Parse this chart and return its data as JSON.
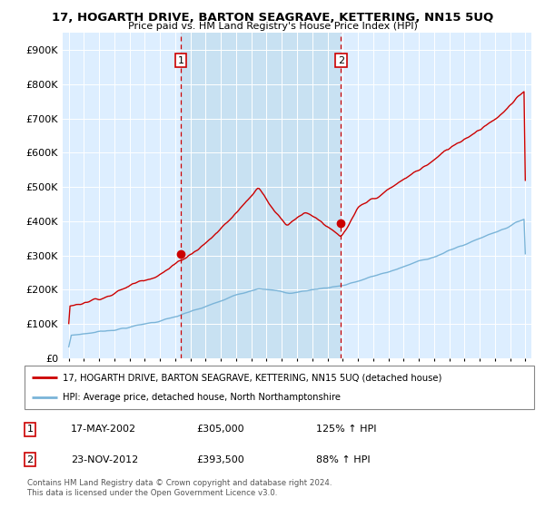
{
  "title": "17, HOGARTH DRIVE, BARTON SEAGRAVE, KETTERING, NN15 5UQ",
  "subtitle": "Price paid vs. HM Land Registry's House Price Index (HPI)",
  "legend_line1": "17, HOGARTH DRIVE, BARTON SEAGRAVE, KETTERING, NN15 5UQ (detached house)",
  "legend_line2": "HPI: Average price, detached house, North Northamptonshire",
  "footnote": "Contains HM Land Registry data © Crown copyright and database right 2024.\nThis data is licensed under the Open Government Licence v3.0.",
  "marker1_date": "17-MAY-2002",
  "marker1_price": "£305,000",
  "marker1_hpi": "125% ↑ HPI",
  "marker1_x": 2002.37,
  "marker1_y": 305000,
  "marker2_date": "23-NOV-2012",
  "marker2_price": "£393,500",
  "marker2_hpi": "88% ↑ HPI",
  "marker2_x": 2012.89,
  "marker2_y": 393500,
  "hpi_color": "#7ab4d8",
  "price_color": "#cc0000",
  "background_color": "#ddeeff",
  "shade_color": "#c5dff0",
  "ylim": [
    0,
    950000
  ],
  "xlim": [
    1994.6,
    2025.4
  ],
  "yticks": [
    0,
    100000,
    200000,
    300000,
    400000,
    500000,
    600000,
    700000,
    800000,
    900000
  ]
}
